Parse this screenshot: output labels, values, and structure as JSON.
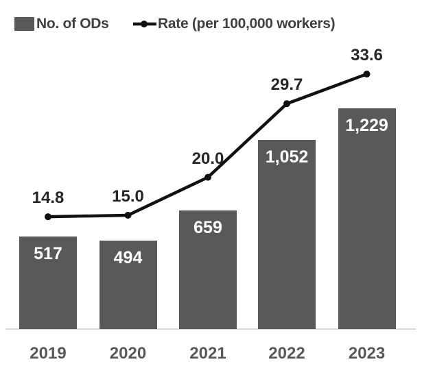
{
  "chart_data": {
    "type": "combo_bar_line",
    "categories": [
      "2019",
      "2020",
      "2021",
      "2022",
      "2023"
    ],
    "series": [
      {
        "name": "No. of ODs",
        "type": "bar",
        "values": [
          517,
          494,
          659,
          1052,
          1229
        ],
        "value_labels": [
          "517",
          "494",
          "659",
          "1,052",
          "1,229"
        ],
        "color": "#595959",
        "value_label_color": "#ffffff"
      },
      {
        "name": "Rate (per 100,000 workers)",
        "type": "line",
        "values": [
          14.8,
          15.0,
          20.0,
          29.7,
          33.6
        ],
        "value_labels": [
          "14.8",
          "15.0",
          "20.0",
          "29.7",
          "33.6"
        ],
        "color": "#111111",
        "value_label_color": "#262626"
      }
    ],
    "legend_position": "top",
    "axes": {
      "y_axes_visible": false,
      "gridlines": false,
      "baseline_color": "#d9d9d9",
      "x_label_color": "#595959"
    }
  }
}
